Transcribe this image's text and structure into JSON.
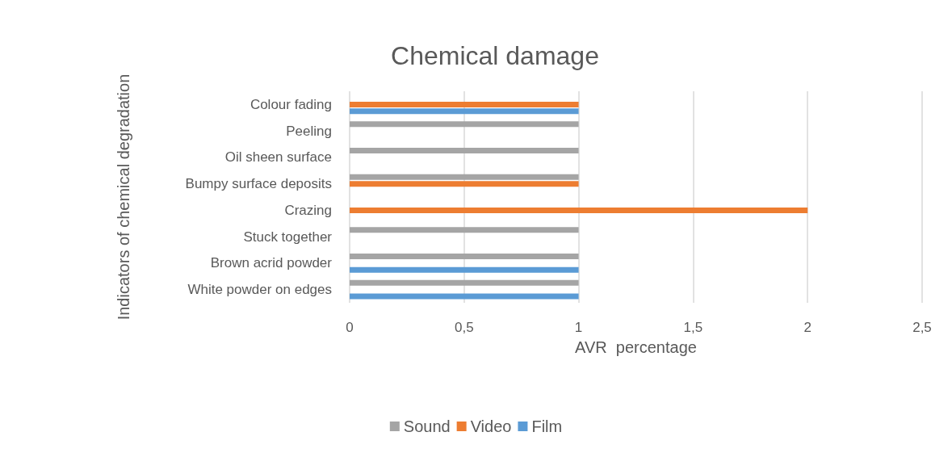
{
  "chart_data": {
    "type": "bar",
    "orientation": "horizontal",
    "title": "Chemical damage",
    "xlabel": "AVR  percentage",
    "ylabel": "Indicators of chemical degradation",
    "categories": [
      "Colour fading",
      "Peeling",
      "Oil sheen surface",
      "Bumpy surface deposits",
      "Crazing",
      "Stuck together",
      "Brown acrid powder",
      "White powder on edges"
    ],
    "series": [
      {
        "name": "Sound",
        "color": "#a5a5a5",
        "values": [
          null,
          1,
          1,
          1,
          null,
          1,
          1,
          1
        ]
      },
      {
        "name": "Video",
        "color": "#ed7d31",
        "values": [
          1,
          null,
          null,
          1,
          2,
          null,
          null,
          null
        ]
      },
      {
        "name": "Film",
        "color": "#5b9bd5",
        "values": [
          1,
          null,
          null,
          null,
          null,
          null,
          1,
          1
        ]
      }
    ],
    "xlim": [
      0,
      2.5
    ],
    "xticks": [
      0,
      {
        "value": 0.5,
        "label": "0,5"
      },
      1,
      {
        "value": 1.5,
        "label": "1,5"
      },
      2,
      {
        "value": 2.5,
        "label": "2,5"
      }
    ],
    "grid": "x",
    "legend": "bottom"
  }
}
